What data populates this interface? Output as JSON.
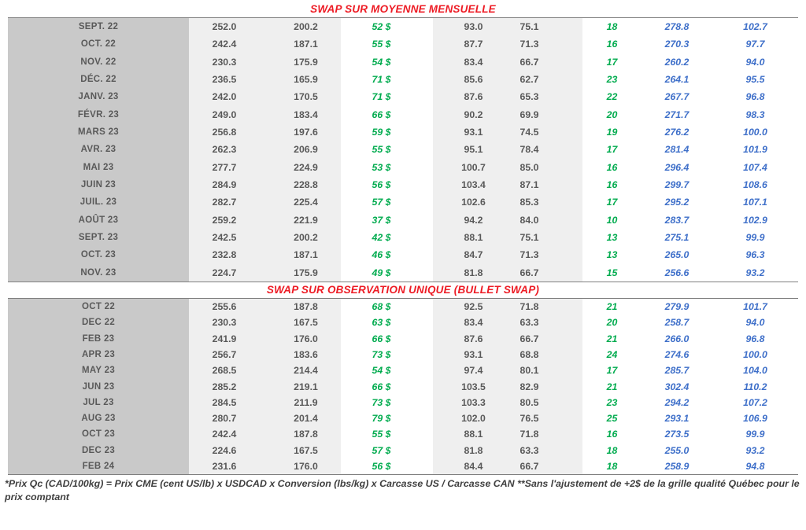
{
  "colors": {
    "title_red": "#ed1b24",
    "green": "#00ab4e",
    "blue": "#3e6fc9",
    "gray_text": "#595959",
    "month_bg": "#c9c9c9",
    "light_bg": "#efefef",
    "border": "#7f7f7f",
    "footnote_text": "#3f3f3f"
  },
  "sections": [
    {
      "title": "SWAP SUR MOYENNE MENSUELLE",
      "rows": [
        [
          "SEPT. 22",
          "252.0",
          "200.2",
          "52 $",
          "93.0",
          "75.1",
          "18",
          "278.8",
          "102.7"
        ],
        [
          "OCT. 22",
          "242.4",
          "187.1",
          "55 $",
          "87.7",
          "71.3",
          "16",
          "270.3",
          "97.7"
        ],
        [
          "NOV. 22",
          "230.3",
          "175.9",
          "54 $",
          "83.4",
          "66.7",
          "17",
          "260.2",
          "94.0"
        ],
        [
          "DÉC. 22",
          "236.5",
          "165.9",
          "71 $",
          "85.6",
          "62.7",
          "23",
          "264.1",
          "95.5"
        ],
        [
          "JANV. 23",
          "242.0",
          "170.5",
          "71 $",
          "87.6",
          "65.3",
          "22",
          "267.7",
          "96.8"
        ],
        [
          "FÉVR. 23",
          "249.0",
          "183.4",
          "66 $",
          "90.2",
          "69.9",
          "20",
          "271.7",
          "98.3"
        ],
        [
          "MARS 23",
          "256.8",
          "197.6",
          "59 $",
          "93.1",
          "74.5",
          "19",
          "276.2",
          "100.0"
        ],
        [
          "AVR. 23",
          "262.3",
          "206.9",
          "55 $",
          "95.1",
          "78.4",
          "17",
          "281.4",
          "101.9"
        ],
        [
          "MAI 23",
          "277.7",
          "224.9",
          "53 $",
          "100.7",
          "85.0",
          "16",
          "296.4",
          "107.4"
        ],
        [
          "JUIN 23",
          "284.9",
          "228.8",
          "56 $",
          "103.4",
          "87.1",
          "16",
          "299.7",
          "108.6"
        ],
        [
          "JUIL. 23",
          "282.7",
          "225.4",
          "57 $",
          "102.6",
          "85.3",
          "17",
          "295.2",
          "107.1"
        ],
        [
          "AOÛT 23",
          "259.2",
          "221.9",
          "37 $",
          "94.2",
          "84.0",
          "10",
          "283.7",
          "102.9"
        ],
        [
          "SEPT. 23",
          "242.5",
          "200.2",
          "42 $",
          "88.1",
          "75.1",
          "13",
          "275.1",
          "99.9"
        ],
        [
          "OCT. 23",
          "232.8",
          "187.1",
          "46 $",
          "84.7",
          "71.3",
          "13",
          "265.0",
          "96.3"
        ],
        [
          "NOV. 23",
          "224.7",
          "175.9",
          "49 $",
          "81.8",
          "66.7",
          "15",
          "256.6",
          "93.2"
        ]
      ]
    },
    {
      "title": "SWAP SUR OBSERVATION UNIQUE (BULLET SWAP)",
      "rows": [
        [
          "OCT 22",
          "255.6",
          "187.8",
          "68 $",
          "92.5",
          "71.8",
          "21",
          "279.9",
          "101.7"
        ],
        [
          "DEC 22",
          "230.3",
          "167.5",
          "63 $",
          "83.4",
          "63.3",
          "20",
          "258.7",
          "94.0"
        ],
        [
          "FEB 23",
          "241.9",
          "176.0",
          "66 $",
          "87.6",
          "66.7",
          "21",
          "266.0",
          "96.8"
        ],
        [
          "APR 23",
          "256.7",
          "183.6",
          "73 $",
          "93.1",
          "68.8",
          "24",
          "274.6",
          "100.0"
        ],
        [
          "MAY 23",
          "268.5",
          "214.4",
          "54 $",
          "97.4",
          "80.1",
          "17",
          "285.7",
          "104.0"
        ],
        [
          "JUN 23",
          "285.2",
          "219.1",
          "66 $",
          "103.5",
          "82.9",
          "21",
          "302.4",
          "110.2"
        ],
        [
          "JUL 23",
          "284.5",
          "211.9",
          "73 $",
          "103.3",
          "80.5",
          "23",
          "294.2",
          "107.2"
        ],
        [
          "AUG 23",
          "280.7",
          "201.4",
          "79 $",
          "102.0",
          "76.5",
          "25",
          "293.1",
          "106.9"
        ],
        [
          "OCT 23",
          "242.4",
          "187.8",
          "55 $",
          "88.1",
          "71.8",
          "16",
          "273.5",
          "99.9"
        ],
        [
          "DEC 23",
          "224.6",
          "167.5",
          "57 $",
          "81.8",
          "63.3",
          "18",
          "255.0",
          "93.2"
        ],
        [
          "FEB 24",
          "231.6",
          "176.0",
          "56 $",
          "84.4",
          "66.7",
          "18",
          "258.9",
          "94.8"
        ]
      ]
    }
  ],
  "footnote": "*Prix Qc (CAD/100kg) = Prix CME (cent US/lb) x USDCAD x Conversion (lbs/kg) x Carcasse US / Carcasse CAN **Sans l'ajustement de +2$ de la grille qualité Québec pour le prix comptant"
}
